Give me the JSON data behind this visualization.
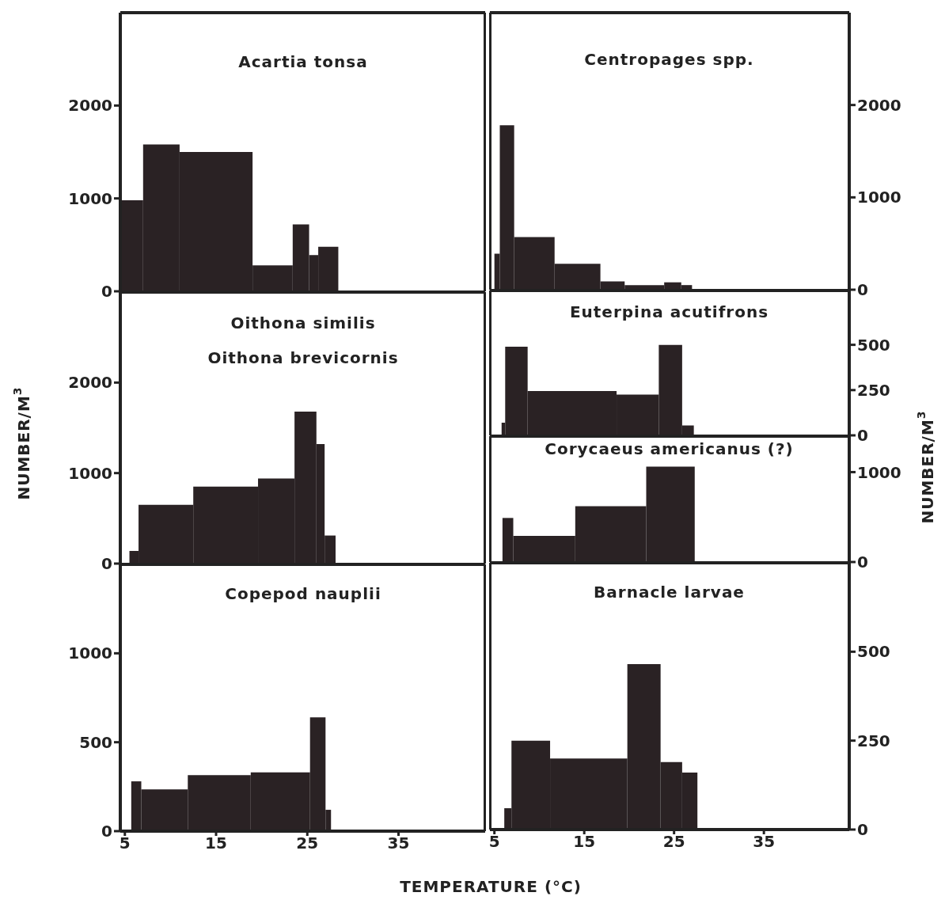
{
  "chart_data": [
    {
      "type": "histogram",
      "title": "Acartia tonsa",
      "bins": [
        4.5,
        7,
        11,
        19,
        23.4,
        25.2,
        26.2,
        28.4
      ],
      "values": [
        980,
        1580,
        1500,
        280,
        720,
        390,
        480
      ],
      "color": "#2a2224",
      "xlim": [
        4.5,
        44.5
      ],
      "xticks": [
        5,
        15,
        25,
        35
      ],
      "ylim": [
        0,
        3000
      ],
      "yticks": [
        0,
        1000,
        2000
      ],
      "tick_labels": "y"
    },
    {
      "type": "histogram",
      "title": "Centropages spp.",
      "bins": [
        5,
        5.6,
        7.2,
        11.7,
        16.8,
        19.5,
        23.9,
        25.8,
        27
      ],
      "values": [
        390,
        1780,
        570,
        280,
        90,
        50,
        80,
        50
      ],
      "color": "#2a2224",
      "xlim": [
        4.5,
        44.5
      ],
      "xticks": [
        5,
        15,
        25,
        35
      ],
      "ylim": [
        0,
        3000
      ],
      "yticks": [
        0,
        1000,
        2000
      ],
      "tick_labels": "y"
    },
    {
      "type": "histogram",
      "title": "Oithona similis",
      "subtitle": "Oithona brevicornis",
      "ylabel": "NUMBER/M$^{3}$",
      "bins": [
        5.5,
        6.5,
        12.5,
        19.6,
        23.6,
        26,
        26.9,
        28.1
      ],
      "values": [
        140,
        650,
        850,
        940,
        1680,
        1320,
        310
      ],
      "color": "#2a2224",
      "xlim": [
        4.5,
        44.5
      ],
      "xticks": [
        5,
        15,
        25,
        35
      ],
      "ylim": [
        0,
        3000
      ],
      "yticks": [
        0,
        1000,
        2000
      ],
      "tick_labels": "y"
    },
    {
      "type": "histogram",
      "title": "Euterpina acutifrons",
      "bins": [
        5.8,
        6.2,
        8.7,
        18.6,
        23.3,
        25.9,
        27.2
      ],
      "values": [
        70,
        490,
        245,
        225,
        500,
        55
      ],
      "color": "#2a2224",
      "xlim": [
        4.5,
        44.5
      ],
      "xticks": [
        5,
        15,
        25,
        35
      ],
      "ylim": [
        0,
        800
      ],
      "yticks": [
        0,
        250,
        500
      ],
      "tick_labels": "y"
    },
    {
      "type": "histogram",
      "title": "Corycaeus americanus (?)",
      "ylabel": "NUMBER/M$^{3}$",
      "bins": [
        5.9,
        7.1,
        14,
        21.9,
        27.3
      ],
      "values": [
        490,
        290,
        620,
        1060
      ],
      "color": "#2a2224",
      "xlim": [
        4.5,
        44.5
      ],
      "xticks": [
        5,
        15,
        25,
        35
      ],
      "ylim": [
        0,
        1400
      ],
      "yticks": [
        0,
        1000
      ],
      "tick_labels": "y"
    },
    {
      "type": "histogram",
      "title": "Copepod nauplii",
      "xlabel": "TEMPERATURE (°C)",
      "bins": [
        5.7,
        6.8,
        11.9,
        18.8,
        25.3,
        27,
        27.6
      ],
      "values": [
        280,
        235,
        315,
        330,
        640,
        120
      ],
      "color": "#2a2224",
      "xlim": [
        4.5,
        44.5
      ],
      "xticks": [
        5,
        15,
        25,
        35
      ],
      "ylim": [
        0,
        1500
      ],
      "yticks": [
        0,
        500,
        1000
      ]
    },
    {
      "type": "histogram",
      "title": "Barnacle larvae",
      "bins": [
        6.1,
        6.9,
        11.2,
        19.8,
        23.5,
        25.9,
        27.6
      ],
      "values": [
        60,
        250,
        200,
        465,
        190,
        160
      ],
      "color": "#2a2224",
      "xlim": [
        4.5,
        44.5
      ],
      "xticks": [
        5,
        15,
        25,
        35
      ],
      "ylim": [
        0,
        750
      ],
      "yticks": [
        0,
        250,
        500
      ]
    }
  ]
}
